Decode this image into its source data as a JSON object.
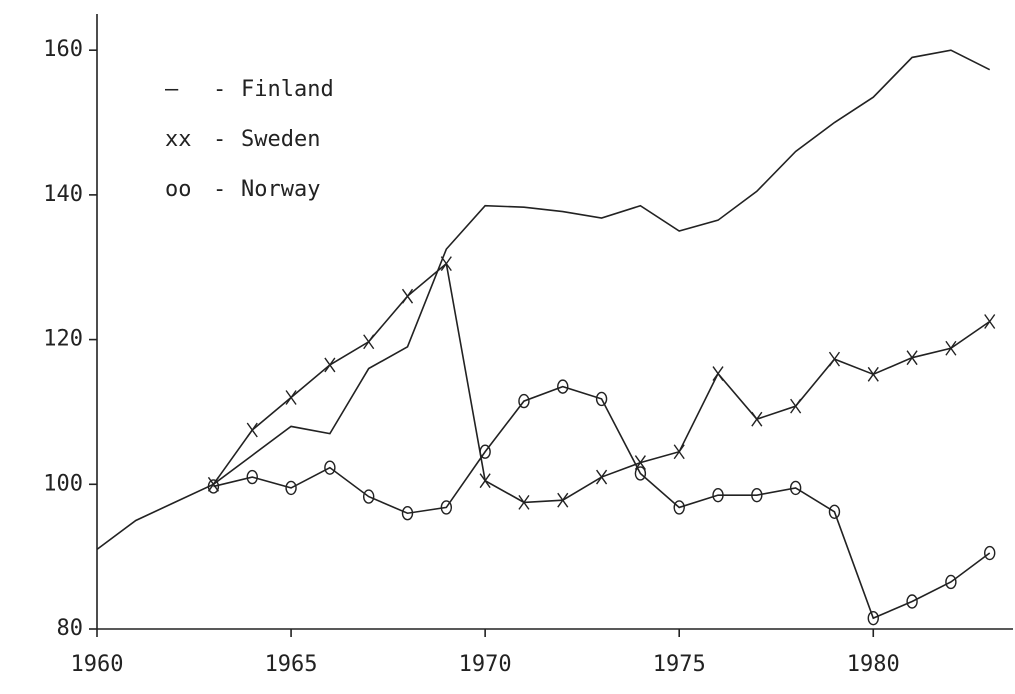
{
  "chart_data": {
    "type": "line",
    "x": [
      1960,
      1961,
      1962,
      1963,
      1964,
      1965,
      1966,
      1967,
      1968,
      1969,
      1970,
      1971,
      1972,
      1973,
      1974,
      1975,
      1976,
      1977,
      1978,
      1979,
      1980,
      1981,
      1982,
      1983
    ],
    "series": [
      {
        "name": "Finland",
        "legend_symbol": "—",
        "marker": "none",
        "color": "#222222",
        "values": [
          91,
          95,
          97.5,
          100,
          104,
          108,
          107,
          116,
          119,
          132.5,
          138.5,
          138.3,
          137.7,
          136.8,
          138.5,
          135,
          136.5,
          140.5,
          146,
          150,
          153.5,
          159,
          160,
          157.3
        ]
      },
      {
        "name": "Sweden",
        "legend_symbol": "xx",
        "marker": "x",
        "color": "#222222",
        "values": [
          null,
          null,
          null,
          100,
          107.5,
          112,
          116.5,
          119.7,
          126,
          130.5,
          100.5,
          97.5,
          97.8,
          101,
          103,
          104.5,
          115.3,
          109,
          110.8,
          117.3,
          115.2,
          117.5,
          118.8,
          122.5
        ]
      },
      {
        "name": "Norway",
        "legend_symbol": "oo",
        "marker": "o",
        "color": "#222222",
        "values": [
          null,
          null,
          null,
          99.7,
          101,
          99.5,
          102.3,
          98.3,
          96,
          96.8,
          104.5,
          111.5,
          113.5,
          111.8,
          101.5,
          96.8,
          98.5,
          98.5,
          99.5,
          96.2,
          81.5,
          83.8,
          86.5,
          90.5
        ]
      }
    ],
    "legend_separator": "-",
    "xlim": [
      1960,
      1983.6
    ],
    "ylim": [
      80,
      165
    ],
    "xticks": [
      1960,
      1965,
      1970,
      1975,
      1980
    ],
    "yticks": [
      80,
      100,
      120,
      140,
      160
    ],
    "legend": "upper left",
    "grid": false
  }
}
